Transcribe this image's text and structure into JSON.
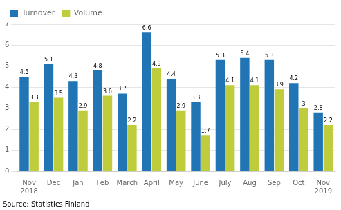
{
  "chart_data": {
    "type": "bar",
    "categories": [
      "Nov\n2018",
      "Dec",
      "Jan",
      "Feb",
      "March",
      "April",
      "May",
      "June",
      "July",
      "Aug",
      "Sep",
      "Oct",
      "Nov\n2019"
    ],
    "series": [
      {
        "name": "Turnover",
        "color": "#2175B5",
        "values": [
          4.5,
          5.1,
          4.3,
          4.8,
          3.7,
          6.6,
          4.4,
          3.3,
          5.3,
          5.4,
          5.3,
          4.2,
          2.8
        ]
      },
      {
        "name": "Volume",
        "color": "#BFCC3B",
        "values": [
          3.3,
          3.5,
          2.9,
          3.6,
          2.2,
          4.9,
          2.9,
          1.7,
          4.1,
          4.1,
          3.9,
          3.0,
          2.2
        ]
      }
    ],
    "ylim": [
      0,
      7
    ],
    "yticks": [
      0,
      1,
      2,
      3,
      4,
      5,
      6,
      7
    ],
    "grid": true,
    "legend": "upper left",
    "data_labels": true,
    "annotations": [
      "Source: Statistics Finland"
    ]
  }
}
